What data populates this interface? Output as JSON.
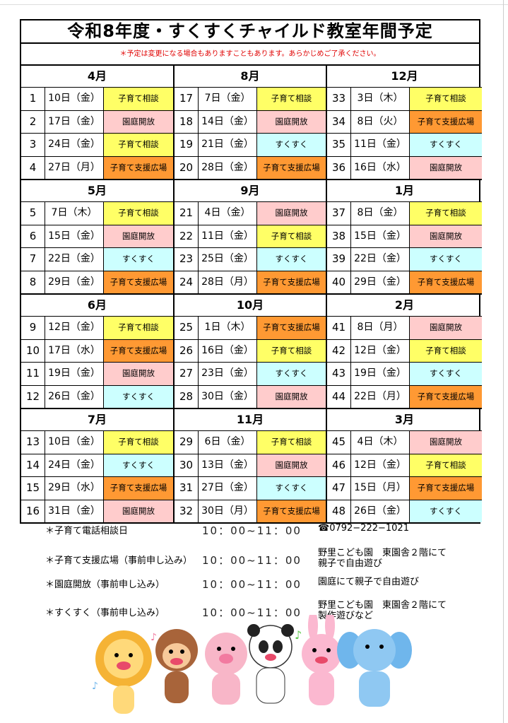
{
  "title": "令和8年度・すくすくチャイルド教室年間予定",
  "note": "＊予定は変更になる場合もありますこともあります。あらかじめご了承ください。",
  "event_labels": {
    "soudan": "子育て相談",
    "entei": "園庭開放",
    "sukusuku": "すくすく",
    "shien": "子育て支援広場"
  },
  "event_colors": {
    "soudan": "#ffff66",
    "entei": "#ffcccc",
    "sukusuku": "#ccffff",
    "shien": "#ff9933"
  },
  "columns": [
    [
      {
        "month": "4月",
        "rows": [
          [
            "1",
            "10日（金）",
            "soudan"
          ],
          [
            "2",
            "17日（金）",
            "entei"
          ],
          [
            "3",
            "24日（金）",
            "soudan"
          ],
          [
            "4",
            "27日（月）",
            "shien"
          ]
        ]
      },
      {
        "month": "5月",
        "rows": [
          [
            "5",
            "7日（木）",
            "soudan"
          ],
          [
            "6",
            "15日（金）",
            "entei"
          ],
          [
            "7",
            "22日（金）",
            "sukusuku"
          ],
          [
            "8",
            "29日（金）",
            "shien"
          ]
        ]
      },
      {
        "month": "6月",
        "rows": [
          [
            "9",
            "12日（金）",
            "soudan"
          ],
          [
            "10",
            "17日（水）",
            "shien"
          ],
          [
            "11",
            "19日（金）",
            "entei"
          ],
          [
            "12",
            "26日（金）",
            "sukusuku"
          ]
        ]
      },
      {
        "month": "7月",
        "rows": [
          [
            "13",
            "10日（金）",
            "soudan"
          ],
          [
            "14",
            "24日（金）",
            "sukusuku"
          ],
          [
            "15",
            "29日（水）",
            "shien"
          ],
          [
            "16",
            "31日（金）",
            "entei"
          ]
        ]
      }
    ],
    [
      {
        "month": "8月",
        "rows": [
          [
            "17",
            "7日（金）",
            "soudan"
          ],
          [
            "18",
            "14日（金）",
            "entei"
          ],
          [
            "19",
            "21日（金）",
            "sukusuku"
          ],
          [
            "20",
            "28日（金）",
            "shien"
          ]
        ]
      },
      {
        "month": "9月",
        "rows": [
          [
            "21",
            "4日（金）",
            "entei"
          ],
          [
            "22",
            "11日（金）",
            "soudan"
          ],
          [
            "23",
            "25日（金）",
            "sukusuku"
          ],
          [
            "24",
            "28日（月）",
            "shien"
          ]
        ]
      },
      {
        "month": "10月",
        "rows": [
          [
            "25",
            "1日（木）",
            "shien"
          ],
          [
            "26",
            "16日（金）",
            "soudan"
          ],
          [
            "27",
            "23日（金）",
            "sukusuku"
          ],
          [
            "28",
            "30日（金）",
            "entei"
          ]
        ]
      },
      {
        "month": "11月",
        "rows": [
          [
            "29",
            "6日（金）",
            "soudan"
          ],
          [
            "30",
            "13日（金）",
            "entei"
          ],
          [
            "31",
            "27日（金）",
            "sukusuku"
          ],
          [
            "32",
            "30日（月）",
            "shien"
          ]
        ]
      }
    ],
    [
      {
        "month": "12月",
        "rows": [
          [
            "33",
            "3日（木）",
            "soudan"
          ],
          [
            "34",
            "8日（火）",
            "shien"
          ],
          [
            "35",
            "11日（金）",
            "sukusuku"
          ],
          [
            "36",
            "16日（水）",
            "entei"
          ]
        ]
      },
      {
        "month": "1月",
        "rows": [
          [
            "37",
            "8日（金）",
            "soudan"
          ],
          [
            "38",
            "15日（金）",
            "entei"
          ],
          [
            "39",
            "22日（金）",
            "sukusuku"
          ],
          [
            "40",
            "29日（金）",
            "shien"
          ]
        ]
      },
      {
        "month": "2月",
        "rows": [
          [
            "41",
            "8日（月）",
            "entei"
          ],
          [
            "42",
            "12日（金）",
            "soudan"
          ],
          [
            "43",
            "19日（金）",
            "sukusuku"
          ],
          [
            "44",
            "22日（月）",
            "shien"
          ]
        ]
      },
      {
        "month": "3月",
        "rows": [
          [
            "45",
            "4日（木）",
            "entei"
          ],
          [
            "46",
            "12日（金）",
            "soudan"
          ],
          [
            "47",
            "15日（月）",
            "shien"
          ],
          [
            "48",
            "26日（金）",
            "sukusuku"
          ]
        ]
      }
    ]
  ],
  "legend": [
    {
      "name": "＊子育て電話相談日",
      "time": "10：00~11：00",
      "desc": "☎0792−222−1021"
    },
    {
      "name": "＊子育て支援広場（事前申し込み）",
      "time": "10：00~11：00",
      "desc": "野里こども園　東園舎２階にて\n親子で自由遊び"
    },
    {
      "name": "＊園庭開放（事前申し込み）",
      "time": "10：00~11：00",
      "desc": "園庭にて親子で自由遊び"
    },
    {
      "name": "＊すくすく（事前申し込み）",
      "time": "10：00~11：00",
      "desc": "野里こども園　東園舎２階にて\n製作遊びなど"
    }
  ],
  "illustration": [
    "lion",
    "monkey",
    "pig",
    "panda",
    "rabbit",
    "elephant"
  ]
}
